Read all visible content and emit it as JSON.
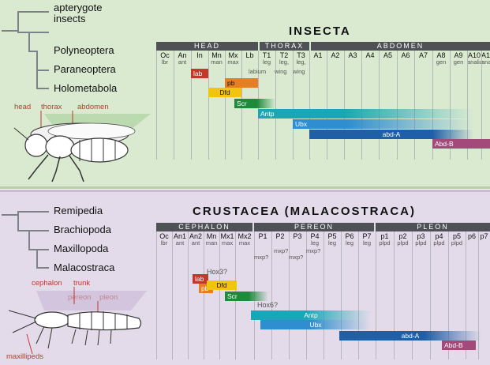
{
  "insecta": {
    "title": "INSECTA",
    "tree": [
      "apterygote",
      "insects",
      "Polyneoptera",
      "Paraneoptera",
      "Holometabola"
    ],
    "sections": [
      "HEAD",
      "THORAX",
      "ABDOMEN"
    ],
    "segments": [
      {
        "name": "Oc",
        "anno": "lbr"
      },
      {
        "name": "An",
        "anno": "ant"
      },
      {
        "name": "In",
        "anno": ""
      },
      {
        "name": "Mn",
        "anno": "man"
      },
      {
        "name": "Mx",
        "anno": "max"
      },
      {
        "name": "Lb",
        "anno": ""
      },
      {
        "name": "T1",
        "anno": "leg"
      },
      {
        "name": "T2",
        "anno": "leg,"
      },
      {
        "name": "T3",
        "anno": "leg,"
      },
      {
        "name": "A1",
        "anno": ""
      },
      {
        "name": "A2",
        "anno": ""
      },
      {
        "name": "A3",
        "anno": ""
      },
      {
        "name": "A4",
        "anno": ""
      },
      {
        "name": "A5",
        "anno": ""
      },
      {
        "name": "A6",
        "anno": ""
      },
      {
        "name": "A7",
        "anno": ""
      },
      {
        "name": "A8",
        "anno": "gen"
      },
      {
        "name": "A9",
        "anno": "gen"
      },
      {
        "name": "A10",
        "anno": "analia"
      },
      {
        "name": "A11",
        "anno": "anal"
      }
    ],
    "extra_annos": {
      "labium": "labium",
      "wing1": "wing",
      "wing2": "wing"
    },
    "hox": [
      {
        "label": "lab",
        "color": "#c0392b"
      },
      {
        "label": "pb",
        "color": "#e67e22"
      },
      {
        "label": "Dfd",
        "color": "#f1c40f"
      },
      {
        "label": "Scr",
        "color": "#1e8a3c"
      },
      {
        "label": "Antp",
        "color": "#1aa6b7"
      },
      {
        "label": "Ubx",
        "color": "#2e8ecf"
      },
      {
        "label": "abd-A",
        "color": "#1f5fa8"
      },
      {
        "label": "Abd-B",
        "color": "#a34a7a"
      }
    ],
    "body_labels": {
      "head": "head",
      "thorax": "thorax",
      "abdomen": "abdomen"
    }
  },
  "crustacea": {
    "title": "CRUSTACEA (MALACOSTRACA)",
    "tree": [
      "Remipedia",
      "Brachiopoda",
      "Maxillopoda",
      "Malacostraca"
    ],
    "sections": [
      "CEPHALON",
      "PEREON",
      "PLEON"
    ],
    "segments": [
      {
        "name": "Oc",
        "anno": "lbr"
      },
      {
        "name": "An1",
        "anno": "ant"
      },
      {
        "name": "An2",
        "anno": "ant"
      },
      {
        "name": "Mn",
        "anno": "man"
      },
      {
        "name": "Mx1",
        "anno": "max"
      },
      {
        "name": "Mx2",
        "anno": "max"
      },
      {
        "name": "P1",
        "anno": ""
      },
      {
        "name": "P2",
        "anno": ""
      },
      {
        "name": "P3",
        "anno": ""
      },
      {
        "name": "P4",
        "anno": "leg"
      },
      {
        "name": "P5",
        "anno": "leg"
      },
      {
        "name": "P6",
        "anno": "leg"
      },
      {
        "name": "P7",
        "anno": "leg"
      },
      {
        "name": "p1",
        "anno": "plpd"
      },
      {
        "name": "p2",
        "anno": "plpd"
      },
      {
        "name": "p3",
        "anno": "plpd"
      },
      {
        "name": "p4",
        "anno": "plpd"
      },
      {
        "name": "p5",
        "anno": "plpd"
      },
      {
        "name": "p6",
        "anno": ""
      },
      {
        "name": "p7",
        "anno": ""
      }
    ],
    "extra_annos": {
      "mxp1": "mxp?",
      "mxp2": "mxp?",
      "mxp3": "mxp?",
      "mxp4": "mxp?"
    },
    "hox": [
      {
        "label": "lab",
        "color": "#c0392b"
      },
      {
        "label": "pb",
        "color": "#e67e22"
      },
      {
        "label": "Dfd",
        "color": "#f1c40f"
      },
      {
        "label": "Scr",
        "color": "#1e8a3c"
      },
      {
        "label": "Antp",
        "color": "#1aa6b7"
      },
      {
        "label": "Ubx",
        "color": "#2e8ecf"
      },
      {
        "label": "abd-A",
        "color": "#1f5fa8"
      },
      {
        "label": "Abd-B",
        "color": "#a34a7a"
      }
    ],
    "notes": {
      "hox3": "Hox3?",
      "hox6": "Hox6?"
    },
    "body_labels": {
      "cephalon": "cephalon",
      "trunk": "trunk",
      "pereon": "pereon",
      "pleon": "pleon",
      "maxillipeds": "maxillipeds"
    }
  }
}
